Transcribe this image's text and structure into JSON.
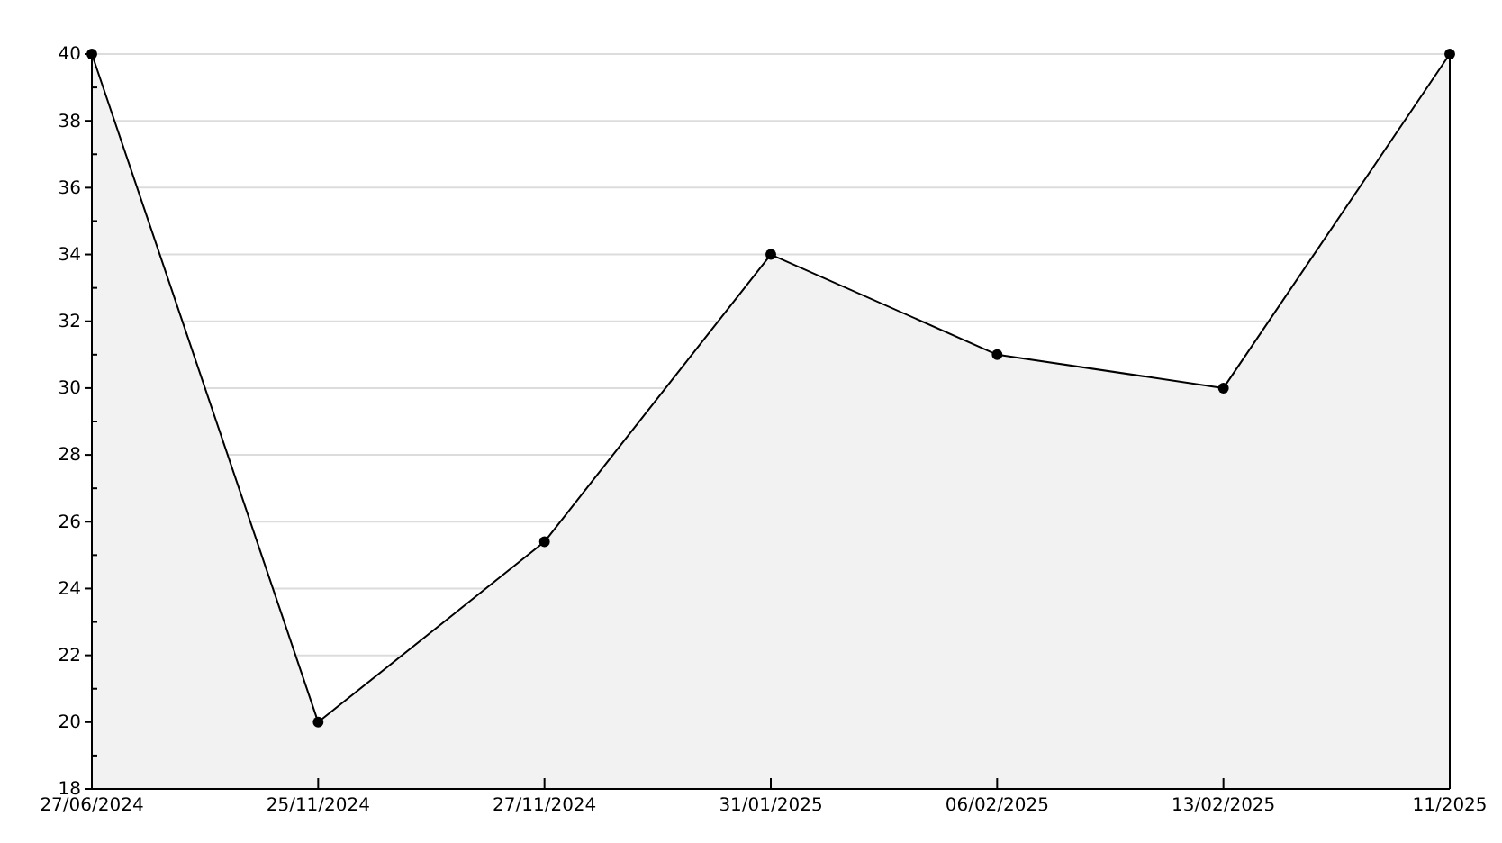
{
  "chart_data": {
    "type": "area",
    "categories": [
      "27/06/2024",
      "25/11/2024",
      "27/11/2024",
      "31/01/2025",
      "06/02/2025",
      "13/02/2025",
      "11/2025"
    ],
    "series": [
      {
        "color": "#000000",
        "values": [
          40,
          20,
          25.4,
          34,
          31,
          30,
          40
        ]
      }
    ],
    "ylim": [
      18,
      40
    ],
    "yticks": [
      18,
      {
        "value": 19,
        "label": null
      },
      20,
      {
        "value": 21,
        "label": null
      },
      22,
      {
        "value": 23,
        "label": null
      },
      24,
      {
        "value": 25,
        "label": null
      },
      26,
      {
        "value": 27,
        "label": null
      },
      28,
      {
        "value": 29,
        "label": null
      },
      30,
      {
        "value": 31,
        "label": null
      },
      32,
      {
        "value": 33,
        "label": null
      },
      34,
      {
        "value": 35,
        "label": null
      },
      36,
      {
        "value": 37,
        "label": null
      },
      38,
      {
        "value": 39,
        "label": null
      },
      40
    ],
    "grid": "y",
    "marker": "circle",
    "line_style": "solid"
  }
}
